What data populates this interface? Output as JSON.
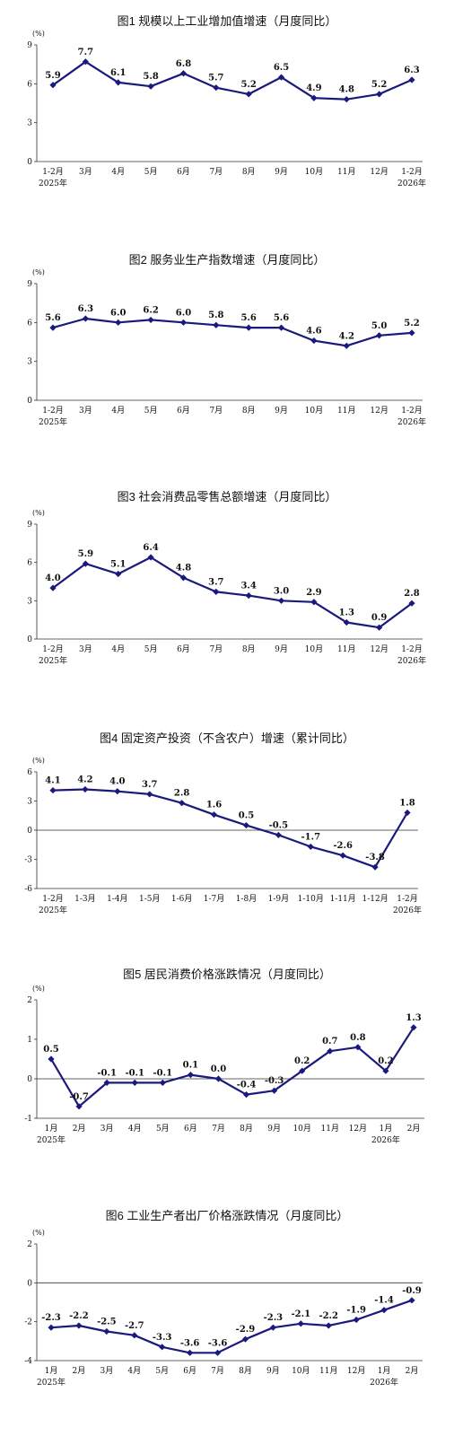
{
  "colors": {
    "series": "#1a1a7e",
    "axis": "#333333",
    "text": "#111111"
  },
  "chart_data": [
    {
      "type": "line",
      "title": "图1   规模以上工业增加值增速（月度同比）",
      "unit": "(%)",
      "x": [
        "1-2月",
        "3月",
        "4月",
        "5月",
        "6月",
        "7月",
        "8月",
        "9月",
        "10月",
        "11月",
        "12月",
        "1-2月"
      ],
      "x_year": {
        "first": "2025年",
        "last": "2026年"
      },
      "ylim": [
        0,
        9
      ],
      "yticks": [
        0,
        3,
        6,
        9
      ],
      "values": [
        5.9,
        7.7,
        6.1,
        5.8,
        6.8,
        5.7,
        5.2,
        6.5,
        4.9,
        4.8,
        5.2,
        6.3
      ],
      "labels": [
        "5.9",
        "7.7",
        "6.1",
        "5.8",
        "6.8",
        "5.7",
        "5.2",
        "6.5",
        "4.9",
        "4.8",
        "5.2",
        "6.3"
      ],
      "marker": "diamond",
      "grid": false
    },
    {
      "type": "line",
      "title": "图2   服务业生产指数增速（月度同比）",
      "unit": "(%)",
      "x": [
        "1-2月",
        "3月",
        "4月",
        "5月",
        "6月",
        "7月",
        "8月",
        "9月",
        "10月",
        "11月",
        "12月",
        "1-2月"
      ],
      "x_year": {
        "first": "2025年",
        "last": "2026年"
      },
      "ylim": [
        0,
        9
      ],
      "yticks": [
        0,
        3,
        6,
        9
      ],
      "values": [
        5.6,
        6.3,
        6.0,
        6.2,
        6.0,
        5.8,
        5.6,
        5.6,
        4.6,
        4.2,
        5.0,
        5.2
      ],
      "labels": [
        "5.6",
        "6.3",
        "6.0",
        "6.2",
        "6.0",
        "5.8",
        "5.6",
        "5.6",
        "4.6",
        "4.2",
        "5.0",
        "5.2"
      ],
      "marker": "diamond",
      "grid": false
    },
    {
      "type": "line",
      "title": "图3   社会消费品零售总额增速（月度同比）",
      "unit": "(%)",
      "x": [
        "1-2月",
        "3月",
        "4月",
        "5月",
        "6月",
        "7月",
        "8月",
        "9月",
        "10月",
        "11月",
        "12月",
        "1-2月"
      ],
      "x_year": {
        "first": "2025年",
        "last": "2026年"
      },
      "ylim": [
        0,
        9
      ],
      "yticks": [
        0,
        3,
        6,
        9
      ],
      "values": [
        4.0,
        5.9,
        5.1,
        6.4,
        4.8,
        3.7,
        3.4,
        3.0,
        2.9,
        1.3,
        0.9,
        2.8
      ],
      "labels": [
        "4.0",
        "5.9",
        "5.1",
        "6.4",
        "4.8",
        "3.7",
        "3.4",
        "3.0",
        "2.9",
        "1.3",
        "0.9",
        "2.8"
      ],
      "marker": "diamond",
      "grid": false
    },
    {
      "type": "line",
      "title": "图4   固定资产投资（不含农户）增速（累计同比）",
      "unit": "(%)",
      "x": [
        "1-2月",
        "1-3月",
        "1-4月",
        "1-5月",
        "1-6月",
        "1-7月",
        "1-8月",
        "1-9月",
        "1-10月",
        "1-11月",
        "1-12月",
        "1-2月"
      ],
      "x_year": {
        "first": "2025年",
        "last": "2026年"
      },
      "ylim": [
        -6,
        6
      ],
      "yticks": [
        -6,
        -3,
        0,
        3,
        6
      ],
      "values": [
        4.1,
        4.2,
        4.0,
        3.7,
        2.8,
        1.6,
        0.5,
        -0.5,
        -1.7,
        -2.6,
        -3.8,
        1.8
      ],
      "labels": [
        "4.1",
        "4.2",
        "4.0",
        "3.7",
        "2.8",
        "1.6",
        "0.5",
        "-0.5",
        "-1.7",
        "-2.6",
        "-3.8",
        "1.8"
      ],
      "marker": "diamond",
      "grid": false
    },
    {
      "type": "line",
      "title": "图5   居民消费价格涨跌情况（月度同比）",
      "unit": "(%)",
      "x": [
        "1月",
        "2月",
        "3月",
        "4月",
        "5月",
        "6月",
        "7月",
        "8月",
        "9月",
        "10月",
        "11月",
        "12月",
        "1月",
        "2月"
      ],
      "x_year": {
        "first": "2025年",
        "last": "2026年",
        "last_index": 12
      },
      "ylim": [
        -1,
        2
      ],
      "yticks": [
        -1,
        0,
        1,
        2
      ],
      "values": [
        0.5,
        -0.7,
        -0.1,
        -0.1,
        -0.1,
        0.1,
        0.0,
        -0.4,
        -0.3,
        0.2,
        0.7,
        0.8,
        0.2,
        1.3
      ],
      "labels": [
        "0.5",
        "-0.7",
        "-0.1",
        "-0.1",
        "-0.1",
        "0.1",
        "0.0",
        "-0.4",
        "-0.3",
        "0.2",
        "0.7",
        "0.8",
        "0.2",
        "1.3"
      ],
      "marker": "diamond",
      "grid": false
    },
    {
      "type": "line",
      "title": "图6   工业生产者出厂价格涨跌情况（月度同比）",
      "unit": "(%)",
      "x": [
        "1月",
        "2月",
        "3月",
        "4月",
        "5月",
        "6月",
        "7月",
        "8月",
        "9月",
        "10月",
        "11月",
        "12月",
        "1月",
        "2月"
      ],
      "x_year": {
        "first": "2025年",
        "last": "2026年",
        "last_index": 12
      },
      "ylim": [
        -4,
        2
      ],
      "yticks": [
        -4,
        -2,
        0,
        2
      ],
      "values": [
        -2.3,
        -2.2,
        -2.5,
        -2.7,
        -3.3,
        -3.6,
        -3.6,
        -2.9,
        -2.3,
        -2.1,
        -2.2,
        -1.9,
        -1.4,
        -0.9
      ],
      "labels": [
        "-2.3",
        "-2.2",
        "-2.5",
        "-2.7",
        "-3.3",
        "-3.6",
        "-3.6",
        "-2.9",
        "-2.3",
        "-2.1",
        "-2.2",
        "-1.9",
        "-1.4",
        "-0.9"
      ],
      "marker": "diamond",
      "grid": false
    }
  ]
}
